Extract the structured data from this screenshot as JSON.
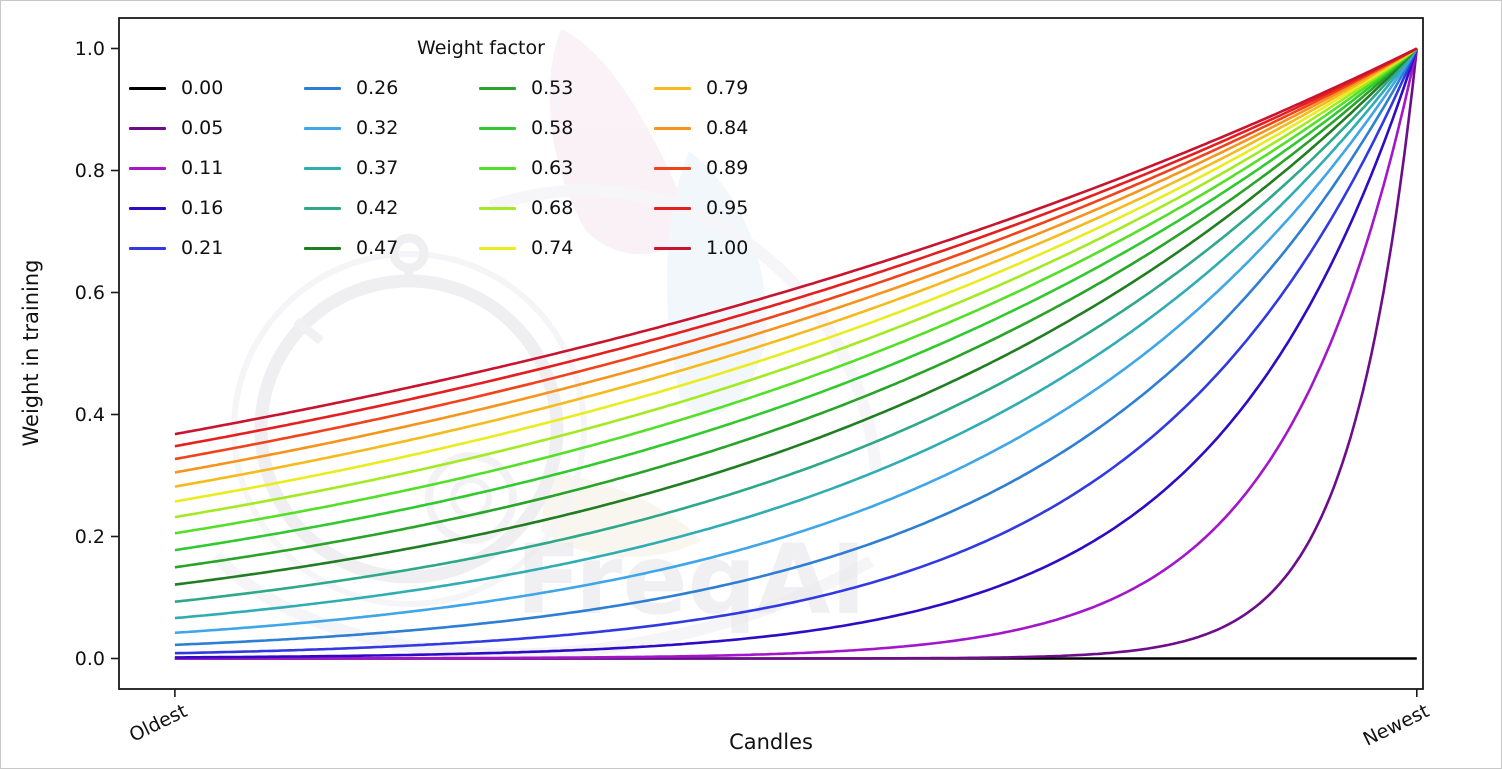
{
  "chart_data": {
    "type": "line",
    "title": "",
    "xlabel": "Candles",
    "ylabel": "Weight in training",
    "legend_title": "Weight factor",
    "legend_position": "upper left",
    "legend_columns": 4,
    "grid": false,
    "x_tick_labels": [
      "Oldest",
      "Newest"
    ],
    "x_tick_positions": [
      0,
      1
    ],
    "y_ticks": [
      0.0,
      0.2,
      0.4,
      0.6,
      0.8,
      1.0
    ],
    "xlim": [
      -0.045,
      1.005
    ],
    "ylim": [
      -0.05,
      1.05
    ],
    "x_range": [
      0,
      1
    ],
    "curve_formula": "weight(x) = exp(-(1 - x) / factor) for x in [0,1]; factor = 0.00 yields a flat line at weight 0",
    "series": [
      {
        "name": "0.00",
        "factor": 0.0,
        "color": "#000000"
      },
      {
        "name": "0.05",
        "factor": 0.0526,
        "color": "#6e0d8a"
      },
      {
        "name": "0.11",
        "factor": 0.1053,
        "color": "#a316c9"
      },
      {
        "name": "0.16",
        "factor": 0.1579,
        "color": "#2f0bc6"
      },
      {
        "name": "0.21",
        "factor": 0.2105,
        "color": "#3139e3"
      },
      {
        "name": "0.26",
        "factor": 0.2632,
        "color": "#2e7fd4"
      },
      {
        "name": "0.32",
        "factor": 0.3158,
        "color": "#3fa6e8"
      },
      {
        "name": "0.37",
        "factor": 0.3684,
        "color": "#2fadb3"
      },
      {
        "name": "0.42",
        "factor": 0.4211,
        "color": "#2da888"
      },
      {
        "name": "0.47",
        "factor": 0.4737,
        "color": "#217d21"
      },
      {
        "name": "0.53",
        "factor": 0.5263,
        "color": "#28a428"
      },
      {
        "name": "0.58",
        "factor": 0.5789,
        "color": "#30ca30"
      },
      {
        "name": "0.63",
        "factor": 0.6316,
        "color": "#55e028"
      },
      {
        "name": "0.68",
        "factor": 0.6842,
        "color": "#a4ea22"
      },
      {
        "name": "0.74",
        "factor": 0.7368,
        "color": "#eaec1d"
      },
      {
        "name": "0.79",
        "factor": 0.7895,
        "color": "#f6ba1c"
      },
      {
        "name": "0.84",
        "factor": 0.8421,
        "color": "#f7941c"
      },
      {
        "name": "0.89",
        "factor": 0.8947,
        "color": "#f0431c"
      },
      {
        "name": "0.95",
        "factor": 0.9474,
        "color": "#e51f1f"
      },
      {
        "name": "1.00",
        "factor": 1.0,
        "color": "#c8142e"
      }
    ],
    "watermark": "FreqAI"
  }
}
